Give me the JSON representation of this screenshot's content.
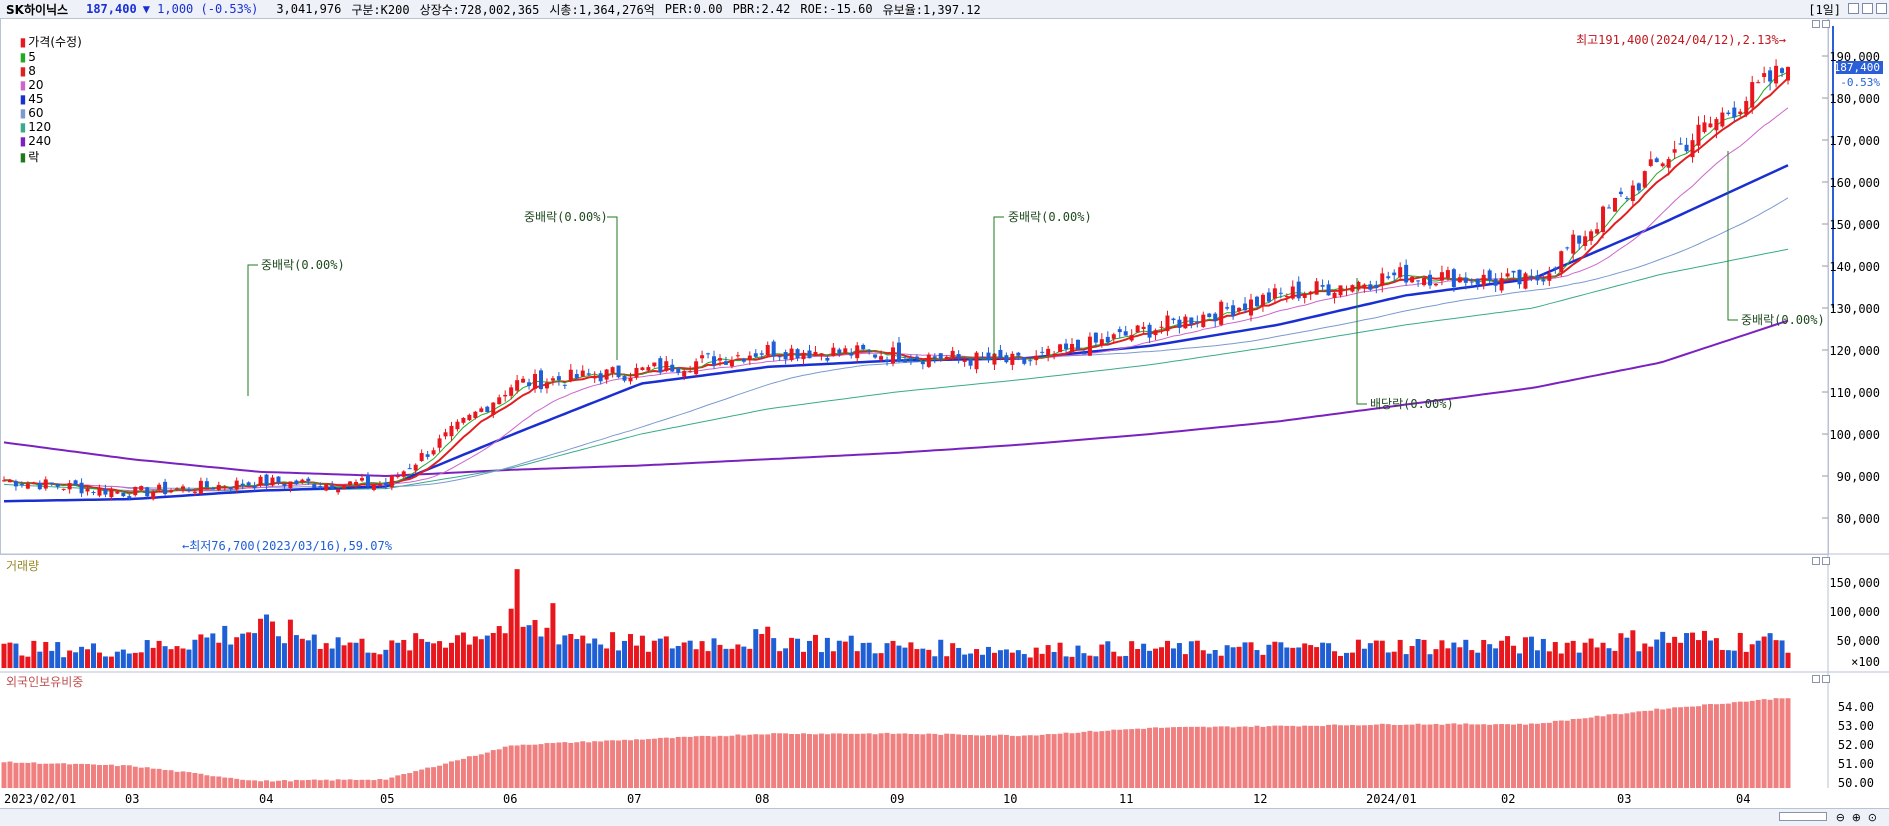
{
  "header": {
    "stock_name": "SK하이닉스",
    "price": "187,400",
    "change_arrow": "▼",
    "change": "1,000",
    "change_pct": "(-0.53%)",
    "volume": "3,041,976",
    "category": "구분:K200",
    "listed_shares": "상장수:728,002,365",
    "market_cap": "시총:1,364,276억",
    "per": "PER:0.00",
    "pbr": "PBR:2.42",
    "roe": "ROE:-15.60",
    "float_ratio": "유보율:1,397.12",
    "period": "[1일]"
  },
  "legend": {
    "price_label": "가격(수정)",
    "ma": [
      {
        "label": "5",
        "color": "#22aa22"
      },
      {
        "label": "8",
        "color": "#e02020"
      },
      {
        "label": "20",
        "color": "#cc66cc"
      },
      {
        "label": "45",
        "color": "#1a2fd2"
      },
      {
        "label": "60",
        "color": "#7a9ad0"
      },
      {
        "label": "120",
        "color": "#3aaa8a"
      },
      {
        "label": "240",
        "color": "#7a22c0"
      }
    ],
    "extra": "락"
  },
  "price_pane": {
    "y_ticks": [
      "190,000",
      "180,000",
      "170,000",
      "160,000",
      "150,000",
      "140,000",
      "130,000",
      "120,000",
      "110,000",
      "100,000",
      "90,000",
      "80,000"
    ],
    "current_price_tag": "187,400",
    "current_change_tag": "-0.53%",
    "high_note": "최고191,400(2024/04/12),2.13%→",
    "low_note": "←최저76,700(2023/03/16),59.07%",
    "annotations": [
      {
        "text": "중배락(0.00%)"
      },
      {
        "text": "중배락(0.00%)"
      },
      {
        "text": "중배락(0.00%)"
      },
      {
        "text": "배당락(0.00%)"
      },
      {
        "text": "중배락(0.00%)"
      }
    ]
  },
  "volume_pane": {
    "title": "거래량",
    "y_ticks": [
      "150,000",
      "100,000",
      "50,000",
      "×100"
    ]
  },
  "foreign_pane": {
    "title": "외국인보유비중",
    "y_ticks": [
      "54.00",
      "53.00",
      "52.00",
      "51.00",
      "50.00"
    ]
  },
  "x_axis": {
    "labels": [
      "2023/02/01",
      "03",
      "04",
      "05",
      "06",
      "07",
      "08",
      "09",
      "10",
      "11",
      "12",
      "2024/01",
      "02",
      "03",
      "04"
    ]
  },
  "colors": {
    "up": "#e8161d",
    "down": "#1f5fd6",
    "foreign_bar": "#f08080",
    "annotation": "#1f7a1f"
  },
  "chart_data": [
    {
      "type": "candlestick",
      "title": "SK하이닉스 가격(수정)",
      "x": [
        "2023/02/01",
        "2023/03",
        "2023/04",
        "2023/05",
        "2023/06",
        "2023/07",
        "2023/08",
        "2023/09",
        "2023/10",
        "2023/11",
        "2023/12",
        "2024/01",
        "2024/02",
        "2024/03",
        "2024/04"
      ],
      "series": [
        {
          "name": "가격(수정)",
          "values": [
            89000,
            86000,
            88500,
            88000,
            112000,
            115000,
            120000,
            119000,
            117000,
            125000,
            133000,
            138000,
            136000,
            165000,
            187400
          ]
        },
        {
          "name": "45",
          "values": [
            84000,
            84500,
            86500,
            87500,
            100000,
            112000,
            116000,
            117500,
            118000,
            121000,
            126000,
            133000,
            137000,
            150000,
            164000
          ]
        },
        {
          "name": "240",
          "values": [
            98000,
            94000,
            91000,
            90000,
            91500,
            92500,
            94000,
            95500,
            97500,
            100000,
            103000,
            107000,
            111000,
            117000,
            127000
          ]
        }
      ],
      "ylim": [
        75000,
        193000
      ]
    },
    {
      "type": "bar",
      "title": "거래량",
      "x": [
        "2023/02/01",
        "2023/03",
        "2023/04",
        "2023/05",
        "2023/06",
        "2023/07",
        "2023/08",
        "2023/09",
        "2023/10",
        "2023/11",
        "2023/12",
        "2024/01",
        "2024/02",
        "2024/03",
        "2024/04"
      ],
      "series": [
        {
          "name": "거래량",
          "values": [
            30000,
            28000,
            60000,
            30000,
            65000,
            35000,
            45000,
            32000,
            28000,
            30000,
            30000,
            35000,
            35000,
            45000,
            40000
          ]
        }
      ],
      "ylim": [
        0,
        170000
      ]
    },
    {
      "type": "bar",
      "title": "외국인보유비중",
      "x": [
        "2023/02/01",
        "2023/03",
        "2023/04",
        "2023/05",
        "2023/06",
        "2023/07",
        "2023/08",
        "2023/09",
        "2023/10",
        "2023/11",
        "2023/12",
        "2024/01",
        "2024/02",
        "2024/03",
        "2024/04"
      ],
      "series": [
        {
          "name": "외국인보유비중",
          "values": [
            51.1,
            50.9,
            50.1,
            50.2,
            52.0,
            52.3,
            52.6,
            52.6,
            52.5,
            52.9,
            53.0,
            53.1,
            53.1,
            53.9,
            54.5
          ]
        }
      ],
      "ylim": [
        49.5,
        55.0
      ]
    }
  ]
}
